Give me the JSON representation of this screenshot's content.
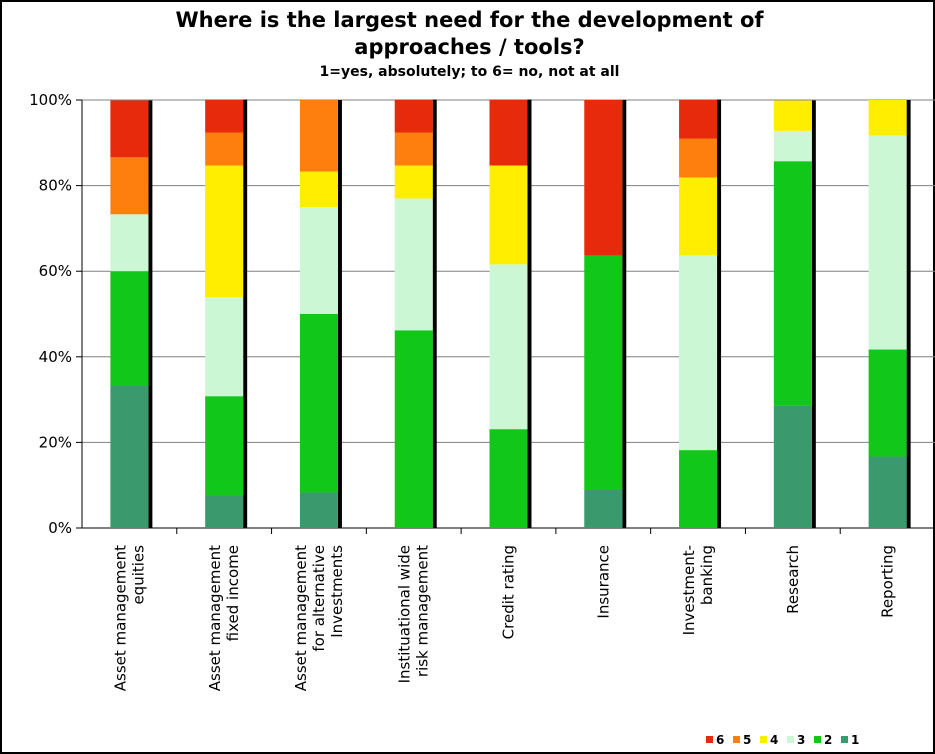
{
  "chart_data": {
    "type": "bar",
    "stacked": true,
    "title": "Where is the largest need for the development of approaches / tools?",
    "title_lines": [
      "Where is the largest need for the development of",
      "approaches / tools?"
    ],
    "subtitle": "1=yes, absolutely; to 6= no, not at all",
    "categories": [
      [
        "Asset management",
        "equities"
      ],
      [
        "Asset management",
        "fixed income"
      ],
      [
        "Asset management",
        "for alternative",
        "Investments"
      ],
      [
        "Instituational wide",
        "risk management"
      ],
      [
        "Credit rating"
      ],
      [
        "Insurance"
      ],
      [
        "Investment-",
        "banking"
      ],
      [
        "Research"
      ],
      [
        "Reporting"
      ]
    ],
    "series": [
      {
        "name": "1",
        "color": "#3a9a6e",
        "values": [
          33.3,
          7.7,
          8.3,
          0,
          0,
          9.1,
          0,
          28.6,
          16.7
        ]
      },
      {
        "name": "2",
        "color": "#11c81a",
        "values": [
          26.7,
          23.1,
          41.7,
          46.2,
          23.1,
          54.5,
          18.2,
          57.1,
          25.0
        ]
      },
      {
        "name": "3",
        "color": "#ccf7d4",
        "values": [
          13.3,
          23.1,
          25.0,
          30.8,
          38.5,
          0,
          45.5,
          7.1,
          50.0
        ]
      },
      {
        "name": "4",
        "color": "#ffee00",
        "values": [
          0,
          30.8,
          8.3,
          7.7,
          23.1,
          0,
          18.2,
          7.1,
          8.3
        ]
      },
      {
        "name": "5",
        "color": "#ff7f0e",
        "values": [
          13.3,
          7.7,
          16.7,
          7.7,
          0,
          0,
          9.1,
          0,
          0
        ]
      },
      {
        "name": "6",
        "color": "#e82a0c",
        "values": [
          13.3,
          7.7,
          0,
          7.7,
          15.4,
          36.4,
          9.1,
          0,
          0
        ]
      }
    ],
    "yticks": [
      "0%",
      "20%",
      "40%",
      "60%",
      "80%",
      "100%"
    ],
    "ylim": [
      0,
      100
    ],
    "grid": true,
    "legend": {
      "position": "bottom-right",
      "order": [
        "6",
        "5",
        "4",
        "3",
        "2",
        "1"
      ]
    },
    "colors": {
      "frame": "#000000",
      "grid": "#808080",
      "bar_shadow": "#000000"
    }
  }
}
